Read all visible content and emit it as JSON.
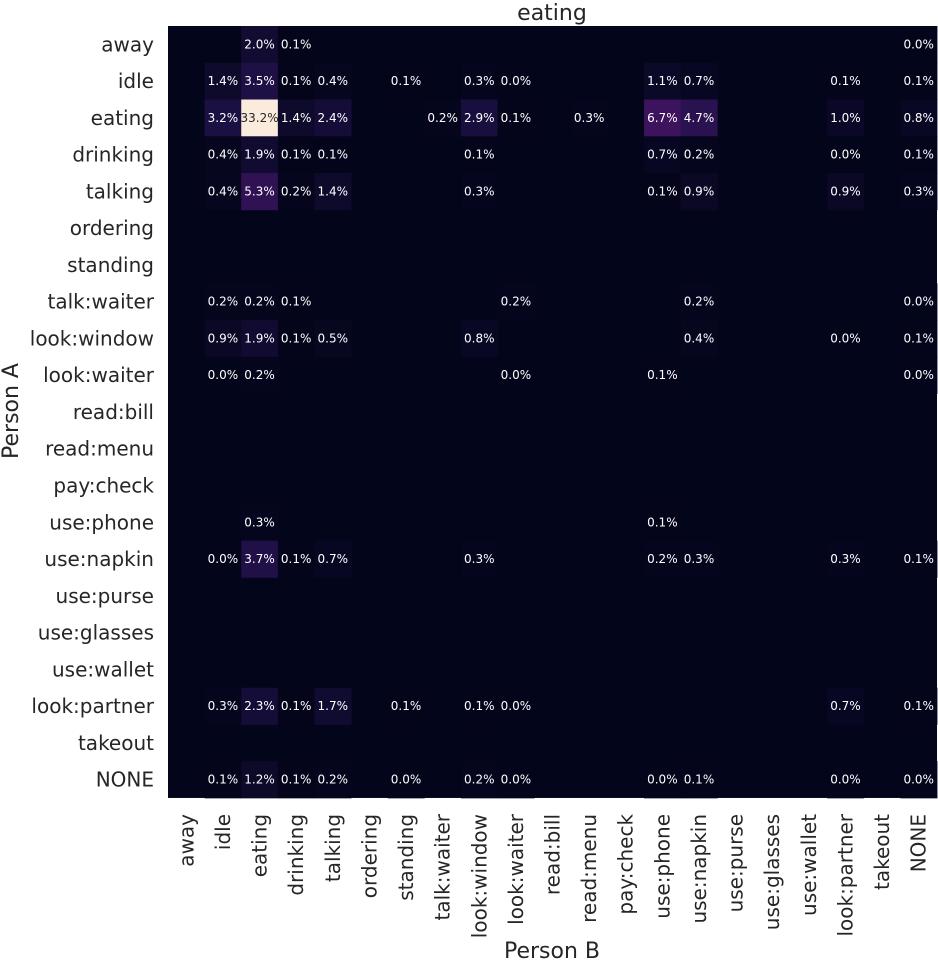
{
  "chart_data": {
    "type": "heatmap",
    "title": "eating",
    "xlabel": "Person B",
    "ylabel": "Person A",
    "colormap": "rocket",
    "background_color": "#03051a",
    "max_value": 33.2,
    "value_format": "{v}%",
    "row_labels": [
      "away",
      "idle",
      "eating",
      "drinking",
      "talking",
      "ordering",
      "standing",
      "talk:waiter",
      "look:window",
      "look:waiter",
      "read:bill",
      "read:menu",
      "pay:check",
      "use:phone",
      "use:napkin",
      "use:purse",
      "use:glasses",
      "use:wallet",
      "look:partner",
      "takeout",
      "NONE"
    ],
    "col_labels": [
      "away",
      "idle",
      "eating",
      "drinking",
      "talking",
      "ordering",
      "standing",
      "talk:waiter",
      "look:window",
      "look:waiter",
      "read:bill",
      "read:menu",
      "pay:check",
      "use:phone",
      "use:napkin",
      "use:purse",
      "use:glasses",
      "use:wallet",
      "look:partner",
      "takeout",
      "NONE"
    ],
    "cells": [
      {
        "r": 0,
        "c": 2,
        "v": "2.0"
      },
      {
        "r": 0,
        "c": 3,
        "v": "0.1"
      },
      {
        "r": 0,
        "c": 20,
        "v": "0.0"
      },
      {
        "r": 1,
        "c": 1,
        "v": "1.4"
      },
      {
        "r": 1,
        "c": 2,
        "v": "3.5"
      },
      {
        "r": 1,
        "c": 3,
        "v": "0.1"
      },
      {
        "r": 1,
        "c": 4,
        "v": "0.4"
      },
      {
        "r": 1,
        "c": 6,
        "v": "0.1"
      },
      {
        "r": 1,
        "c": 8,
        "v": "0.3"
      },
      {
        "r": 1,
        "c": 9,
        "v": "0.0"
      },
      {
        "r": 1,
        "c": 13,
        "v": "1.1"
      },
      {
        "r": 1,
        "c": 14,
        "v": "0.7"
      },
      {
        "r": 1,
        "c": 18,
        "v": "0.1"
      },
      {
        "r": 1,
        "c": 20,
        "v": "0.1"
      },
      {
        "r": 2,
        "c": 1,
        "v": "3.2"
      },
      {
        "r": 2,
        "c": 2,
        "v": "33.2"
      },
      {
        "r": 2,
        "c": 3,
        "v": "1.4"
      },
      {
        "r": 2,
        "c": 4,
        "v": "2.4"
      },
      {
        "r": 2,
        "c": 7,
        "v": "0.2"
      },
      {
        "r": 2,
        "c": 8,
        "v": "2.9"
      },
      {
        "r": 2,
        "c": 9,
        "v": "0.1"
      },
      {
        "r": 2,
        "c": 11,
        "v": "0.3"
      },
      {
        "r": 2,
        "c": 13,
        "v": "6.7"
      },
      {
        "r": 2,
        "c": 14,
        "v": "4.7"
      },
      {
        "r": 2,
        "c": 18,
        "v": "1.0"
      },
      {
        "r": 2,
        "c": 20,
        "v": "0.8"
      },
      {
        "r": 3,
        "c": 1,
        "v": "0.4"
      },
      {
        "r": 3,
        "c": 2,
        "v": "1.9"
      },
      {
        "r": 3,
        "c": 3,
        "v": "0.1"
      },
      {
        "r": 3,
        "c": 4,
        "v": "0.1"
      },
      {
        "r": 3,
        "c": 8,
        "v": "0.1"
      },
      {
        "r": 3,
        "c": 13,
        "v": "0.7"
      },
      {
        "r": 3,
        "c": 14,
        "v": "0.2"
      },
      {
        "r": 3,
        "c": 18,
        "v": "0.0"
      },
      {
        "r": 3,
        "c": 20,
        "v": "0.1"
      },
      {
        "r": 4,
        "c": 1,
        "v": "0.4"
      },
      {
        "r": 4,
        "c": 2,
        "v": "5.3"
      },
      {
        "r": 4,
        "c": 3,
        "v": "0.2"
      },
      {
        "r": 4,
        "c": 4,
        "v": "1.4"
      },
      {
        "r": 4,
        "c": 8,
        "v": "0.3"
      },
      {
        "r": 4,
        "c": 13,
        "v": "0.1"
      },
      {
        "r": 4,
        "c": 14,
        "v": "0.9"
      },
      {
        "r": 4,
        "c": 18,
        "v": "0.9"
      },
      {
        "r": 4,
        "c": 20,
        "v": "0.3"
      },
      {
        "r": 7,
        "c": 1,
        "v": "0.2"
      },
      {
        "r": 7,
        "c": 2,
        "v": "0.2"
      },
      {
        "r": 7,
        "c": 3,
        "v": "0.1"
      },
      {
        "r": 7,
        "c": 9,
        "v": "0.2"
      },
      {
        "r": 7,
        "c": 14,
        "v": "0.2"
      },
      {
        "r": 7,
        "c": 20,
        "v": "0.0"
      },
      {
        "r": 8,
        "c": 1,
        "v": "0.9"
      },
      {
        "r": 8,
        "c": 2,
        "v": "1.9"
      },
      {
        "r": 8,
        "c": 3,
        "v": "0.1"
      },
      {
        "r": 8,
        "c": 4,
        "v": "0.5"
      },
      {
        "r": 8,
        "c": 8,
        "v": "0.8"
      },
      {
        "r": 8,
        "c": 14,
        "v": "0.4"
      },
      {
        "r": 8,
        "c": 18,
        "v": "0.0"
      },
      {
        "r": 8,
        "c": 20,
        "v": "0.1"
      },
      {
        "r": 9,
        "c": 1,
        "v": "0.0"
      },
      {
        "r": 9,
        "c": 2,
        "v": "0.2"
      },
      {
        "r": 9,
        "c": 9,
        "v": "0.0"
      },
      {
        "r": 9,
        "c": 13,
        "v": "0.1"
      },
      {
        "r": 9,
        "c": 20,
        "v": "0.0"
      },
      {
        "r": 13,
        "c": 2,
        "v": "0.3"
      },
      {
        "r": 13,
        "c": 13,
        "v": "0.1"
      },
      {
        "r": 14,
        "c": 1,
        "v": "0.0"
      },
      {
        "r": 14,
        "c": 2,
        "v": "3.7"
      },
      {
        "r": 14,
        "c": 3,
        "v": "0.1"
      },
      {
        "r": 14,
        "c": 4,
        "v": "0.7"
      },
      {
        "r": 14,
        "c": 8,
        "v": "0.3"
      },
      {
        "r": 14,
        "c": 13,
        "v": "0.2"
      },
      {
        "r": 14,
        "c": 14,
        "v": "0.3"
      },
      {
        "r": 14,
        "c": 18,
        "v": "0.3"
      },
      {
        "r": 14,
        "c": 20,
        "v": "0.1"
      },
      {
        "r": 18,
        "c": 1,
        "v": "0.3"
      },
      {
        "r": 18,
        "c": 2,
        "v": "2.3"
      },
      {
        "r": 18,
        "c": 3,
        "v": "0.1"
      },
      {
        "r": 18,
        "c": 4,
        "v": "1.7"
      },
      {
        "r": 18,
        "c": 6,
        "v": "0.1"
      },
      {
        "r": 18,
        "c": 8,
        "v": "0.1"
      },
      {
        "r": 18,
        "c": 9,
        "v": "0.0"
      },
      {
        "r": 18,
        "c": 18,
        "v": "0.7"
      },
      {
        "r": 18,
        "c": 20,
        "v": "0.1"
      },
      {
        "r": 20,
        "c": 1,
        "v": "0.1"
      },
      {
        "r": 20,
        "c": 2,
        "v": "1.2"
      },
      {
        "r": 20,
        "c": 3,
        "v": "0.1"
      },
      {
        "r": 20,
        "c": 4,
        "v": "0.2"
      },
      {
        "r": 20,
        "c": 6,
        "v": "0.0"
      },
      {
        "r": 20,
        "c": 8,
        "v": "0.2"
      },
      {
        "r": 20,
        "c": 9,
        "v": "0.0"
      },
      {
        "r": 20,
        "c": 13,
        "v": "0.0"
      },
      {
        "r": 20,
        "c": 14,
        "v": "0.1"
      },
      {
        "r": 20,
        "c": 18,
        "v": "0.0"
      },
      {
        "r": 20,
        "c": 20,
        "v": "0.0"
      }
    ]
  }
}
